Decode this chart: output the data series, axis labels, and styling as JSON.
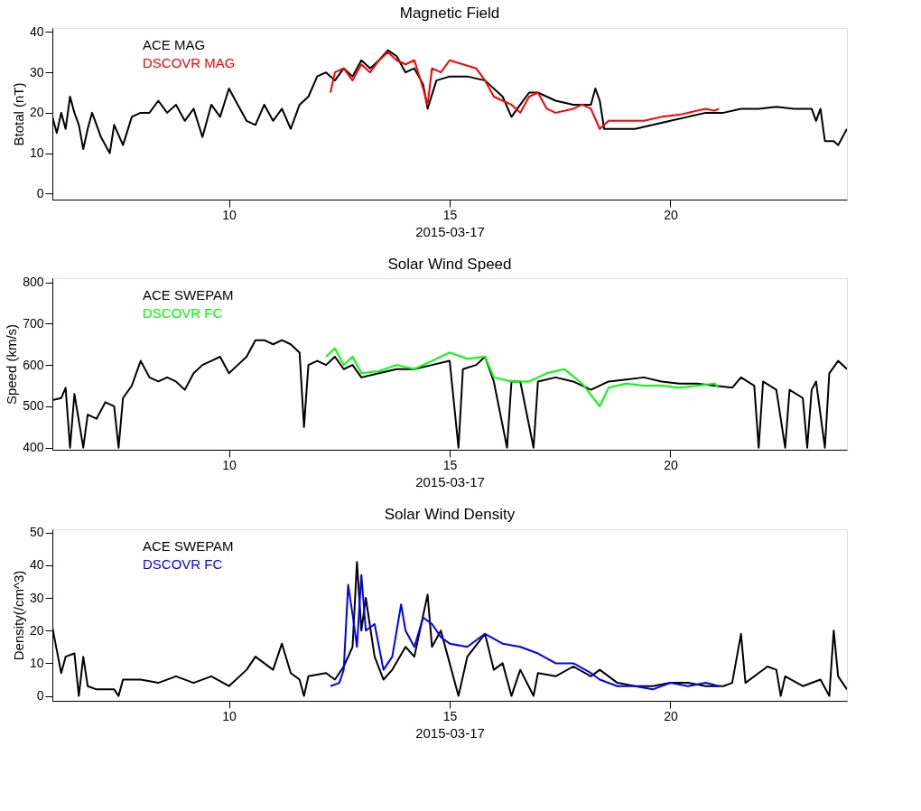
{
  "chart_data": [
    {
      "type": "line",
      "title": "Magnetic Field",
      "xlabel": "2015-03-17",
      "ylabel": "Btotal (nT)",
      "xlim": [
        6,
        24
      ],
      "xticks": [
        10,
        15,
        20
      ],
      "ylim": [
        -1.5,
        41
      ],
      "yticks": [
        0,
        10,
        20,
        30,
        40
      ],
      "legend": "top left",
      "grid": false,
      "marker": "none",
      "series": [
        {
          "name": "ACE MAG",
          "color": "#000000",
          "x": [
            6.0,
            6.1,
            6.2,
            6.3,
            6.4,
            6.5,
            6.6,
            6.7,
            6.8,
            6.9,
            7.1,
            7.3,
            7.4,
            7.6,
            7.8,
            8.0,
            8.2,
            8.4,
            8.6,
            8.8,
            9.0,
            9.2,
            9.4,
            9.6,
            9.8,
            10.0,
            10.2,
            10.4,
            10.6,
            10.8,
            11.0,
            11.2,
            11.4,
            11.6,
            11.8,
            12.0,
            12.2,
            12.4,
            12.6,
            12.8,
            13.0,
            13.2,
            13.4,
            13.6,
            13.8,
            14.0,
            14.2,
            14.4,
            14.5,
            14.7,
            15.0,
            15.4,
            15.8,
            16.2,
            16.4,
            16.6,
            16.8,
            17.0,
            17.4,
            17.8,
            18.2,
            18.3,
            18.4,
            18.5,
            18.8,
            19.2,
            19.6,
            20.0,
            20.4,
            20.8,
            21.2,
            21.6,
            22.0,
            22.4,
            22.8,
            23.2,
            23.3,
            23.4,
            23.5,
            23.7,
            23.8,
            24.0
          ],
          "values": [
            19,
            15,
            20,
            16,
            24,
            20,
            17,
            11,
            16,
            20,
            14,
            10,
            17,
            12,
            19,
            20,
            20,
            23,
            20,
            22,
            18,
            21,
            14,
            22,
            19,
            26,
            22,
            18,
            17,
            22,
            18,
            21,
            16,
            22,
            24,
            29,
            30,
            28,
            31,
            29,
            33,
            31,
            33,
            35.5,
            34,
            30,
            31,
            27,
            21,
            28,
            29,
            29,
            28,
            24,
            19,
            22,
            25,
            25,
            23,
            22,
            22,
            26,
            23,
            16,
            16,
            16,
            17,
            18,
            19,
            20,
            20,
            21,
            21,
            21.5,
            21,
            21,
            18,
            21,
            13,
            13,
            12,
            16
          ]
        },
        {
          "name": "DSCOVR MAG",
          "color": "#ff0000",
          "x": [
            12.3,
            12.4,
            12.6,
            12.8,
            13.0,
            13.2,
            13.4,
            13.6,
            13.8,
            14.0,
            14.2,
            14.4,
            14.5,
            14.6,
            14.8,
            15.0,
            15.3,
            15.6,
            15.8,
            16.0,
            16.2,
            16.4,
            16.6,
            16.8,
            17.0,
            17.2,
            17.4,
            17.8,
            18.0,
            18.2,
            18.4,
            18.6,
            19.0,
            19.4,
            19.8,
            20.2,
            20.6,
            20.8,
            21.0,
            21.1
          ],
          "values": [
            25,
            30,
            31,
            28,
            32,
            30,
            33,
            35,
            33,
            32,
            33,
            26,
            22,
            31,
            30,
            33,
            32,
            31,
            28,
            24,
            23,
            22,
            20,
            24,
            25,
            21,
            20,
            21,
            22,
            21,
            16,
            18,
            18,
            18,
            19,
            19.5,
            20.5,
            21,
            20.5,
            21
          ]
        }
      ]
    },
    {
      "type": "line",
      "title": "Solar Wind Speed",
      "xlabel": "2015-03-17",
      "ylabel": "Speed (km/s)",
      "xlim": [
        6,
        24
      ],
      "xticks": [
        10,
        15,
        20
      ],
      "ylim": [
        395,
        810
      ],
      "yticks": [
        400,
        500,
        600,
        700,
        800
      ],
      "legend": "top left",
      "grid": false,
      "marker": "none",
      "series": [
        {
          "name": "ACE SWEPAM",
          "color": "#000000",
          "x": [
            6.0,
            6.2,
            6.3,
            6.4,
            6.5,
            6.7,
            6.8,
            7.0,
            7.2,
            7.4,
            7.5,
            7.6,
            7.8,
            8.0,
            8.2,
            8.4,
            8.6,
            8.8,
            9.0,
            9.2,
            9.4,
            9.6,
            9.8,
            10.0,
            10.2,
            10.4,
            10.6,
            10.8,
            11.0,
            11.2,
            11.4,
            11.6,
            11.7,
            11.8,
            12.0,
            12.2,
            12.4,
            12.6,
            12.8,
            13.0,
            13.4,
            13.8,
            14.2,
            14.6,
            15.0,
            15.2,
            15.3,
            15.6,
            15.8,
            16.0,
            16.3,
            16.4,
            16.6,
            16.9,
            17.0,
            17.4,
            17.8,
            18.2,
            18.6,
            19.0,
            19.4,
            19.8,
            20.2,
            20.6,
            21.0,
            21.4,
            21.6,
            21.9,
            22.0,
            22.1,
            22.4,
            22.6,
            22.7,
            23.0,
            23.1,
            23.2,
            23.3,
            23.5,
            23.6,
            23.8,
            24.0
          ],
          "values": [
            515,
            520,
            545,
            400,
            530,
            400,
            480,
            470,
            510,
            500,
            400,
            520,
            550,
            610,
            570,
            560,
            570,
            560,
            540,
            580,
            600,
            610,
            620,
            580,
            600,
            620,
            660,
            660,
            650,
            660,
            650,
            630,
            450,
            600,
            610,
            600,
            620,
            590,
            600,
            570,
            580,
            590,
            590,
            600,
            610,
            400,
            590,
            600,
            620,
            560,
            400,
            560,
            560,
            400,
            560,
            570,
            560,
            540,
            560,
            565,
            570,
            560,
            555,
            555,
            550,
            545,
            570,
            550,
            400,
            560,
            540,
            400,
            540,
            520,
            400,
            540,
            560,
            400,
            580,
            610,
            590
          ]
        },
        {
          "name": "DSCOVR FC",
          "color": "#00ff00",
          "x": [
            12.2,
            12.4,
            12.6,
            12.8,
            13.0,
            13.4,
            13.8,
            14.2,
            14.6,
            15.0,
            15.4,
            15.8,
            16.0,
            16.4,
            16.8,
            17.2,
            17.6,
            18.0,
            18.4,
            18.6,
            19.0,
            19.4,
            19.8,
            20.2,
            20.6,
            21.0,
            21.1
          ],
          "values": [
            620,
            640,
            600,
            620,
            580,
            585,
            600,
            590,
            610,
            630,
            615,
            620,
            570,
            560,
            560,
            580,
            590,
            555,
            500,
            545,
            555,
            550,
            550,
            545,
            550,
            555,
            545
          ]
        }
      ]
    },
    {
      "type": "line",
      "title": "Solar Wind Density",
      "xlabel": "2015-03-17",
      "ylabel": "Density(/cm^3)",
      "xlim": [
        6,
        24
      ],
      "xticks": [
        10,
        15,
        20
      ],
      "ylim": [
        -1.5,
        51
      ],
      "yticks": [
        0,
        10,
        20,
        30,
        40,
        50
      ],
      "legend": "top left",
      "grid": false,
      "marker": "none",
      "series": [
        {
          "name": "ACE SWEPAM",
          "color": "#000000",
          "x": [
            6.0,
            6.1,
            6.2,
            6.3,
            6.5,
            6.6,
            6.7,
            6.8,
            7.0,
            7.4,
            7.5,
            7.6,
            8.0,
            8.4,
            8.8,
            9.2,
            9.6,
            10.0,
            10.4,
            10.6,
            10.8,
            11.0,
            11.2,
            11.4,
            11.6,
            11.7,
            11.8,
            12.2,
            12.4,
            12.6,
            12.8,
            12.9,
            13.0,
            13.1,
            13.3,
            13.5,
            13.7,
            14.0,
            14.2,
            14.5,
            14.6,
            14.8,
            15.0,
            15.2,
            15.4,
            15.8,
            16.0,
            16.2,
            16.4,
            16.6,
            16.9,
            17.0,
            17.4,
            17.8,
            18.2,
            18.4,
            18.8,
            19.2,
            19.6,
            20.0,
            20.4,
            20.8,
            21.2,
            21.4,
            21.6,
            21.7,
            22.0,
            22.2,
            22.4,
            22.5,
            22.6,
            23.0,
            23.4,
            23.6,
            23.7,
            23.8,
            24.0
          ],
          "values": [
            21,
            14,
            7,
            12,
            13,
            0,
            12,
            3,
            2,
            2,
            0,
            5,
            5,
            4,
            6,
            4,
            6,
            3,
            8,
            12,
            10,
            8,
            16,
            7,
            5,
            0,
            6,
            7,
            5,
            9,
            15,
            41,
            20,
            30,
            12,
            5,
            8,
            15,
            12,
            31,
            15,
            20,
            10,
            0,
            12,
            19,
            8,
            10,
            0,
            8,
            0,
            7,
            6,
            9,
            6,
            8,
            4,
            3,
            3,
            4,
            4,
            3,
            3,
            4,
            19,
            4,
            7,
            9,
            8,
            0,
            6,
            3,
            5,
            0,
            20,
            6,
            2
          ]
        },
        {
          "name": "DSCOVR FC",
          "color": "#0000ff",
          "x": [
            12.3,
            12.5,
            12.6,
            12.7,
            12.8,
            12.9,
            13.0,
            13.1,
            13.3,
            13.5,
            13.7,
            13.9,
            14.0,
            14.2,
            14.4,
            14.6,
            14.8,
            15.0,
            15.4,
            15.8,
            16.2,
            16.6,
            17.0,
            17.4,
            17.8,
            18.2,
            18.4,
            18.8,
            19.2,
            19.6,
            20.0,
            20.4,
            20.8,
            21.1
          ],
          "values": [
            3,
            4,
            8,
            34,
            25,
            15,
            37,
            20,
            22,
            8,
            12,
            28,
            20,
            15,
            24,
            22,
            18,
            16,
            15,
            19,
            16,
            15,
            13,
            10,
            10,
            7,
            5,
            3,
            3,
            2,
            4,
            3,
            4,
            3
          ]
        }
      ]
    }
  ]
}
